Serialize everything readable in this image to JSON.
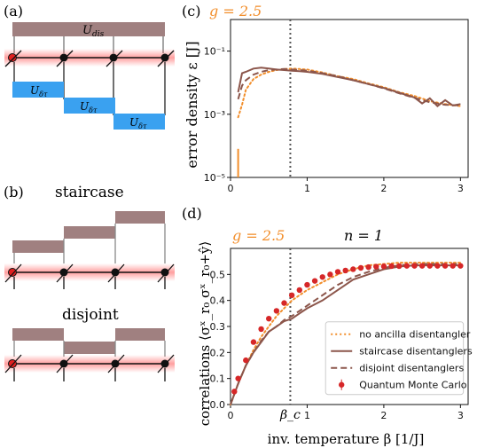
{
  "panels": {
    "a": "(a)",
    "b": "(b)",
    "c": "(c)",
    "d": "(d)"
  },
  "schematic": {
    "u_dis": "U",
    "u_dis_sub": "dis",
    "u_dtau": "U",
    "u_dtau_sub": "δτ",
    "staircase": "staircase",
    "disjoint": "disjoint"
  },
  "colors": {
    "orange": "#f28e2b",
    "brown": "#8c564b",
    "qmc_red": "#d62728",
    "blue_block": "#3aa1f0",
    "brown_block": "#a08080",
    "chain_glow": "#ff5050"
  },
  "chart_data": [
    {
      "type": "line",
      "panel": "c",
      "annotation": "g = 2.5",
      "ylabel": "error density ε [J]",
      "xlabel": "",
      "yscale": "log",
      "xlim": [
        0,
        3.1
      ],
      "ylim": [
        1e-05,
        1
      ],
      "xticks": [
        "0",
        "1",
        "2",
        "3"
      ],
      "yticks": [
        "10⁻⁵",
        "10⁻³",
        "10⁻¹"
      ],
      "vline_x": 0.78,
      "series": [
        {
          "style": "dotted",
          "color": "#f28e2b",
          "x": [
            0.1,
            0.15,
            0.2,
            0.3,
            0.4,
            0.5,
            0.6,
            0.7,
            0.8,
            0.9,
            1.0,
            1.2,
            1.4,
            1.6,
            1.8,
            2.0,
            2.2,
            2.4,
            2.6,
            2.8,
            3.0
          ],
          "y": [
            0.0008,
            0.002,
            0.006,
            0.013,
            0.018,
            0.022,
            0.025,
            0.027,
            0.028,
            0.027,
            0.026,
            0.021,
            0.016,
            0.013,
            0.0095,
            0.0072,
            0.005,
            0.0038,
            0.0026,
            0.0021,
            0.0018
          ]
        },
        {
          "style": "solid",
          "color": "#8c564b",
          "x": [
            0.1,
            0.15,
            0.2,
            0.3,
            0.4,
            0.5,
            0.6,
            0.7,
            0.8,
            0.9,
            1.0,
            1.2,
            1.4,
            1.6,
            1.8,
            2.0,
            2.2,
            2.4,
            2.5,
            2.6,
            2.7,
            2.8,
            2.9,
            3.0
          ],
          "y": [
            0.005,
            0.02,
            0.022,
            0.028,
            0.03,
            0.028,
            0.026,
            0.025,
            0.024,
            0.023,
            0.022,
            0.019,
            0.015,
            0.012,
            0.009,
            0.0068,
            0.0048,
            0.0034,
            0.0022,
            0.0032,
            0.0018,
            0.0028,
            0.0019,
            0.0021
          ]
        },
        {
          "style": "dashed",
          "color": "#8c564b",
          "x": [
            0.1,
            0.15,
            0.2,
            0.3,
            0.4,
            0.5,
            0.6,
            0.7,
            0.8,
            0.9,
            1.0,
            1.2,
            1.4,
            1.6,
            1.8,
            2.0,
            2.2,
            2.4,
            2.6,
            2.8,
            3.0
          ],
          "y": [
            0.003,
            0.008,
            0.012,
            0.018,
            0.022,
            0.025,
            0.026,
            0.027,
            0.026,
            0.025,
            0.024,
            0.02,
            0.016,
            0.012,
            0.009,
            0.0066,
            0.0046,
            0.0033,
            0.0024,
            0.002,
            0.0019
          ]
        },
        {
          "style": "solid",
          "color": "#f28e2b",
          "x": [
            0.1,
            0.1
          ],
          "y": [
            1e-05,
            8e-05
          ]
        }
      ]
    },
    {
      "type": "line",
      "panel": "d",
      "annotation": "g = 2.5",
      "title": "n = 1",
      "ylabel": "correlations ⟨σˣ_r₀ σˣ_r₀+ŷ⟩",
      "xlabel": "inv. temperature β [1/J]",
      "xlim": [
        0,
        3.1
      ],
      "ylim": [
        0,
        0.6
      ],
      "xticks": [
        "0",
        "1",
        "2",
        "3"
      ],
      "yticks": [
        "0.0",
        "0.1",
        "0.2",
        "0.3",
        "0.4",
        "0.5"
      ],
      "vline_x": 0.78,
      "vline_label": "β_c",
      "series": [
        {
          "name": "no ancilla disentangler",
          "style": "dotted",
          "color": "#f28e2b",
          "x": [
            0,
            0.1,
            0.2,
            0.3,
            0.4,
            0.5,
            0.6,
            0.7,
            0.8,
            0.9,
            1.0,
            1.2,
            1.4,
            1.6,
            1.8,
            2.0,
            2.2,
            2.4,
            2.6,
            2.8,
            3.0
          ],
          "y": [
            0,
            0.08,
            0.15,
            0.21,
            0.26,
            0.3,
            0.34,
            0.37,
            0.4,
            0.42,
            0.44,
            0.47,
            0.5,
            0.52,
            0.535,
            0.54,
            0.545,
            0.545,
            0.545,
            0.545,
            0.545
          ]
        },
        {
          "name": "staircase disentanglers",
          "style": "solid",
          "color": "#8c564b",
          "x": [
            0,
            0.1,
            0.2,
            0.3,
            0.4,
            0.5,
            0.6,
            0.7,
            0.8,
            0.9,
            1.0,
            1.2,
            1.4,
            1.6,
            1.8,
            2.0,
            2.2,
            2.4,
            2.6,
            2.8,
            3.0
          ],
          "y": [
            0,
            0.08,
            0.15,
            0.2,
            0.24,
            0.28,
            0.3,
            0.32,
            0.33,
            0.35,
            0.37,
            0.4,
            0.44,
            0.48,
            0.5,
            0.52,
            0.53,
            0.535,
            0.535,
            0.535,
            0.535
          ]
        },
        {
          "name": "disjoint disentanglers",
          "style": "dashed",
          "color": "#8c564b",
          "x": [
            0,
            0.1,
            0.2,
            0.3,
            0.4,
            0.5,
            0.6,
            0.7,
            0.8,
            0.9,
            1.0,
            1.2,
            1.4,
            1.6,
            1.8,
            2.0,
            2.2,
            2.4,
            2.6,
            2.8,
            3.0
          ],
          "y": [
            0,
            0.08,
            0.15,
            0.2,
            0.245,
            0.28,
            0.3,
            0.325,
            0.34,
            0.36,
            0.38,
            0.42,
            0.46,
            0.49,
            0.51,
            0.525,
            0.535,
            0.54,
            0.54,
            0.54,
            0.54
          ]
        },
        {
          "name": "Quantum Monte Carlo",
          "style": "markers",
          "color": "#d62728",
          "x": [
            0.05,
            0.1,
            0.2,
            0.3,
            0.4,
            0.5,
            0.6,
            0.7,
            0.8,
            0.9,
            1.0,
            1.1,
            1.2,
            1.3,
            1.4,
            1.5,
            1.6,
            1.7,
            1.8,
            1.9,
            2.0,
            2.1,
            2.2,
            2.3,
            2.4,
            2.5,
            2.6,
            2.7,
            2.8,
            2.9,
            3.0
          ],
          "y": [
            0.05,
            0.1,
            0.17,
            0.24,
            0.29,
            0.33,
            0.36,
            0.39,
            0.42,
            0.44,
            0.46,
            0.475,
            0.49,
            0.5,
            0.51,
            0.515,
            0.52,
            0.525,
            0.528,
            0.53,
            0.531,
            0.532,
            0.532,
            0.533,
            0.533,
            0.533,
            0.533,
            0.533,
            0.533,
            0.533,
            0.533
          ]
        }
      ],
      "legend": {
        "entries": [
          "no ancilla disentangler",
          "staircase disentanglers",
          "disjoint disentanglers",
          "Quantum Monte Carlo"
        ]
      }
    }
  ]
}
